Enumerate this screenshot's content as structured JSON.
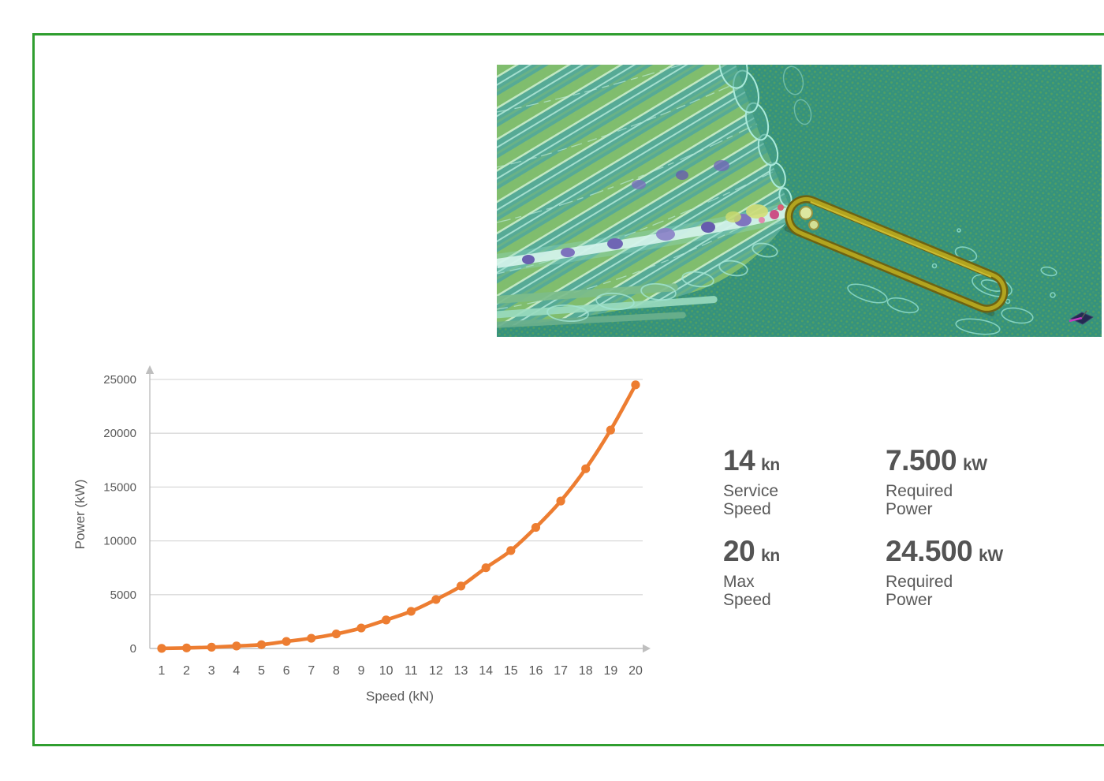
{
  "page": {
    "background": "#ffffff",
    "frame_color": "#2f9e2f"
  },
  "cfd_image": {
    "label": "ship-wake-cfd-simulation",
    "water_color": "#35927d",
    "hull_color": "#6e6312"
  },
  "stats": {
    "items": [
      {
        "value": "14",
        "unit": "kn",
        "label": "Service Speed"
      },
      {
        "value": "7.500",
        "unit": "kW",
        "label": "Required Power"
      },
      {
        "value": "20",
        "unit": "kn",
        "label": "Max Speed"
      },
      {
        "value": "24.500",
        "unit": "kW",
        "label": "Required Power"
      }
    ]
  },
  "chart_data": {
    "type": "line",
    "title": "",
    "xlabel": "Speed (kN)",
    "ylabel": "Power (kW)",
    "x": [
      1,
      2,
      3,
      4,
      5,
      6,
      7,
      8,
      9,
      10,
      11,
      12,
      13,
      14,
      15,
      16,
      17,
      18,
      19,
      20
    ],
    "series": [
      {
        "name": "Required Power",
        "values": [
          10,
          50,
          120,
          230,
          350,
          650,
          950,
          1350,
          1900,
          2650,
          3450,
          4550,
          5800,
          7500,
          9100,
          11250,
          13700,
          16700,
          20300,
          24500
        ]
      }
    ],
    "ylim": [
      0,
      25000
    ],
    "yticks": [
      0,
      5000,
      10000,
      15000,
      20000,
      25000
    ],
    "grid": true,
    "legend": "none",
    "line_color": "#ED7D31",
    "marker": "circle",
    "grid_color": "#D9D9D9",
    "axis_color": "#BFBFBF",
    "text_color": "#595959"
  }
}
